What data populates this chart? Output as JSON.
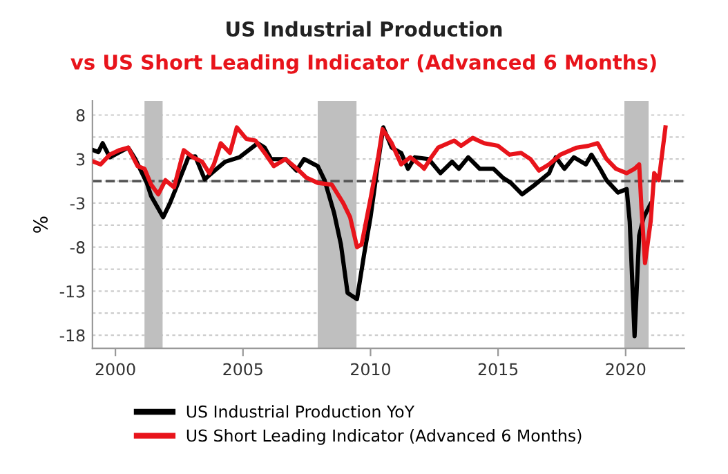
{
  "chart_data": {
    "type": "line",
    "title": "US Industrial Production",
    "subtitle": "vs US Short Leading Indicator (Advanced 6 Months)",
    "ylabel": "%",
    "xlim": [
      1999.1,
      2022.3
    ],
    "xticks": [
      2000,
      2005,
      2010,
      2015,
      2020
    ],
    "ylim": [
      -19,
      9.1
    ],
    "yticks": [
      {
        "value": 7.5,
        "label": "8"
      },
      {
        "value": 5,
        "label": null
      },
      {
        "value": 2.5,
        "label": "3"
      },
      {
        "value": 0,
        "label": null
      },
      {
        "value": -2.5,
        "label": "-3"
      },
      {
        "value": -5,
        "label": null
      },
      {
        "value": -7.5,
        "label": "-8"
      },
      {
        "value": -10,
        "label": null
      },
      {
        "value": -12.5,
        "label": "-13"
      },
      {
        "value": -15,
        "label": null
      },
      {
        "value": -17.5,
        "label": "-18"
      }
    ],
    "grid": "y",
    "legend": "bottom",
    "line_style": "solid",
    "ref_lines": [
      {
        "axis": "y",
        "value": 0,
        "label": null,
        "color": "#555555",
        "line_style": "dashed"
      }
    ],
    "bands": [
      {
        "axis": "x",
        "from": 2001.14,
        "to": 2001.85,
        "label": null,
        "color": "#bfbfbf"
      },
      {
        "axis": "x",
        "from": 2007.93,
        "to": 2009.45,
        "label": null,
        "color": "#bfbfbf"
      },
      {
        "axis": "x",
        "from": 2019.95,
        "to": 2020.9,
        "label": null,
        "color": "#bfbfbf"
      }
    ],
    "series": [
      {
        "name": "US Industrial Production YoY",
        "color": "#000000",
        "x": [
          1999.15,
          1999.33,
          1999.5,
          1999.78,
          2000.5,
          2000.78,
          2001.23,
          2001.4,
          2001.87,
          2002.14,
          2002.5,
          2002.86,
          2003.13,
          2003.5,
          2003.77,
          2004.3,
          2004.86,
          2005.58,
          2005.85,
          2006.1,
          2006.67,
          2007.1,
          2007.4,
          2007.93,
          2008.2,
          2008.57,
          2008.84,
          2009.1,
          2009.47,
          2009.75,
          2010.0,
          2010.3,
          2010.5,
          2010.83,
          2011.2,
          2011.47,
          2011.74,
          2012.28,
          2012.74,
          2013.2,
          2013.46,
          2013.83,
          2014.28,
          2014.82,
          2015.18,
          2015.5,
          2015.94,
          2016.45,
          2017.0,
          2017.26,
          2017.6,
          2017.97,
          2018.44,
          2018.66,
          2019.0,
          2019.25,
          2019.7,
          2020.04,
          2020.16,
          2020.35,
          2020.53,
          2020.71,
          2020.98
        ],
        "values": [
          3.5,
          3.3,
          4.3,
          2.7,
          3.8,
          2.5,
          -0.2,
          -1.7,
          -4.1,
          -2.5,
          0.1,
          2.7,
          2.8,
          0.2,
          0.9,
          2.2,
          2.7,
          4.3,
          3.8,
          2.5,
          2.5,
          1.2,
          2.5,
          1.7,
          0.1,
          -3.6,
          -7.2,
          -12.7,
          -13.4,
          -8.3,
          -4.1,
          2.2,
          6.1,
          3.8,
          3.2,
          1.4,
          2.7,
          2.5,
          0.9,
          2.2,
          1.4,
          2.7,
          1.4,
          1.4,
          0.4,
          -0.2,
          -1.5,
          -0.4,
          0.9,
          2.7,
          1.4,
          2.7,
          1.9,
          3.0,
          1.4,
          0.1,
          -1.3,
          -0.9,
          -4.6,
          -17.6,
          -6.2,
          -4.1,
          -2.6
        ]
      },
      {
        "name": "US Short Leading Indicator (Advanced 6 Months)",
        "color": "#e8141b",
        "x": [
          1999.15,
          1999.42,
          1999.78,
          2000.14,
          2000.5,
          2000.87,
          2001.14,
          2001.4,
          2001.68,
          2001.96,
          2002.3,
          2002.68,
          2003.04,
          2003.4,
          2003.68,
          2003.86,
          2004.13,
          2004.49,
          2004.76,
          2005.13,
          2005.49,
          2005.85,
          2006.21,
          2006.67,
          2007.12,
          2007.48,
          2007.93,
          2008.48,
          2008.93,
          2009.2,
          2009.47,
          2009.65,
          2010.0,
          2010.3,
          2010.47,
          2010.83,
          2011.2,
          2011.56,
          2012.0,
          2012.1,
          2012.38,
          2012.65,
          2013.28,
          2013.55,
          2014.0,
          2014.45,
          2015.0,
          2015.45,
          2015.9,
          2016.27,
          2016.6,
          2017.0,
          2017.44,
          2018.08,
          2018.53,
          2018.9,
          2019.25,
          2019.62,
          2020.04,
          2020.35,
          2020.53,
          2020.62,
          2020.76,
          2020.98,
          2021.12,
          2021.3,
          2021.56
        ],
        "values": [
          2.2,
          1.9,
          3.0,
          3.5,
          3.8,
          1.7,
          1.4,
          -0.4,
          -1.5,
          0.1,
          -0.7,
          3.5,
          2.7,
          2.2,
          0.9,
          1.9,
          4.3,
          3.2,
          6.1,
          4.8,
          4.6,
          3.2,
          1.7,
          2.5,
          1.4,
          0.4,
          -0.2,
          -0.4,
          -2.5,
          -4.1,
          -7.5,
          -7.2,
          -2.0,
          2.7,
          5.9,
          4.3,
          1.9,
          2.7,
          1.7,
          1.4,
          2.7,
          3.8,
          4.6,
          4.0,
          4.9,
          4.3,
          4.0,
          3.0,
          3.2,
          2.5,
          1.2,
          1.9,
          3.0,
          3.8,
          4.0,
          4.3,
          2.5,
          1.4,
          0.9,
          1.4,
          1.9,
          -3.0,
          -9.3,
          -4.6,
          0.9,
          0.1,
          6.1
        ]
      }
    ]
  }
}
